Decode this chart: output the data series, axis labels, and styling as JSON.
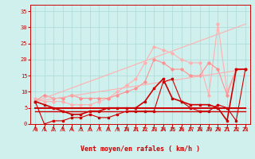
{
  "xlabel": "Vent moyen/en rafales ( km/h )",
  "xlim": [
    -0.5,
    23.5
  ],
  "ylim": [
    0,
    37
  ],
  "yticks": [
    0,
    5,
    10,
    15,
    20,
    25,
    30,
    35
  ],
  "xticks": [
    0,
    1,
    2,
    3,
    4,
    5,
    6,
    7,
    8,
    9,
    10,
    11,
    12,
    13,
    14,
    15,
    16,
    17,
    18,
    19,
    20,
    21,
    22,
    23
  ],
  "bg_color": "#d0f0ee",
  "grid_color": "#aadad6",
  "series": [
    {
      "x": [
        0,
        1,
        2,
        3,
        4,
        5,
        6,
        7,
        8,
        9,
        10,
        11,
        12,
        13,
        14,
        15,
        16,
        17,
        18,
        19,
        20,
        21,
        22,
        23
      ],
      "y": [
        8,
        7,
        7,
        7,
        6,
        6,
        6,
        7,
        8,
        10,
        12,
        14,
        19,
        24,
        23,
        22,
        20,
        19,
        19,
        9,
        31,
        10,
        17,
        17
      ],
      "color": "#ffb0b0",
      "lw": 0.8,
      "marker": "D",
      "ms": 1.8
    },
    {
      "x": [
        0,
        1,
        2,
        3,
        4,
        5,
        6,
        7,
        8,
        9,
        10,
        11,
        12,
        13,
        14,
        15,
        16,
        17,
        18,
        19,
        20,
        21,
        22,
        23
      ],
      "y": [
        7,
        9,
        8,
        8,
        9,
        8,
        8,
        8,
        8,
        9,
        10,
        11,
        13,
        20,
        19,
        17,
        17,
        15,
        15,
        19,
        17,
        9,
        17,
        17
      ],
      "color": "#ff9090",
      "lw": 0.8,
      "marker": "D",
      "ms": 1.8
    },
    {
      "x": [
        0,
        23
      ],
      "y": [
        7,
        31
      ],
      "color": "#ffb0b0",
      "lw": 0.8,
      "marker": null,
      "ms": 0
    },
    {
      "x": [
        0,
        23
      ],
      "y": [
        7,
        17
      ],
      "color": "#ffb0b0",
      "lw": 0.8,
      "marker": null,
      "ms": 0
    },
    {
      "x": [
        0,
        1,
        2,
        3,
        4,
        5,
        6,
        7,
        8,
        9,
        10,
        11,
        12,
        13,
        14,
        15,
        16,
        17,
        18,
        19,
        20,
        21,
        22,
        23
      ],
      "y": [
        7,
        6,
        5,
        4,
        3,
        3,
        4,
        4,
        5,
        5,
        5,
        5,
        7,
        11,
        14,
        8,
        7,
        6,
        6,
        6,
        5,
        1,
        17,
        17
      ],
      "color": "#cc0000",
      "lw": 1.2,
      "marker": "s",
      "ms": 2.0
    },
    {
      "x": [
        0,
        1,
        2,
        3,
        4,
        5,
        6,
        7,
        8,
        9,
        10,
        11,
        12,
        13,
        14,
        15,
        16,
        17,
        18,
        19,
        20,
        21,
        22,
        23
      ],
      "y": [
        7,
        0,
        1,
        1,
        2,
        2,
        3,
        2,
        2,
        3,
        4,
        4,
        4,
        4,
        13,
        14,
        7,
        5,
        4,
        4,
        6,
        5,
        1,
        17
      ],
      "color": "#cc0000",
      "lw": 0.8,
      "marker": "s",
      "ms": 1.6
    },
    {
      "x": [
        0,
        23
      ],
      "y": [
        5,
        5
      ],
      "color": "#cc0000",
      "lw": 1.4,
      "marker": null,
      "ms": 0
    },
    {
      "x": [
        0,
        23
      ],
      "y": [
        4,
        4
      ],
      "color": "#cc0000",
      "lw": 1.0,
      "marker": null,
      "ms": 0
    }
  ],
  "arrow_color": "#cc0000",
  "tick_color": "#cc0000",
  "label_color": "#cc0000",
  "tick_fontsize": 5,
  "xlabel_fontsize": 6
}
